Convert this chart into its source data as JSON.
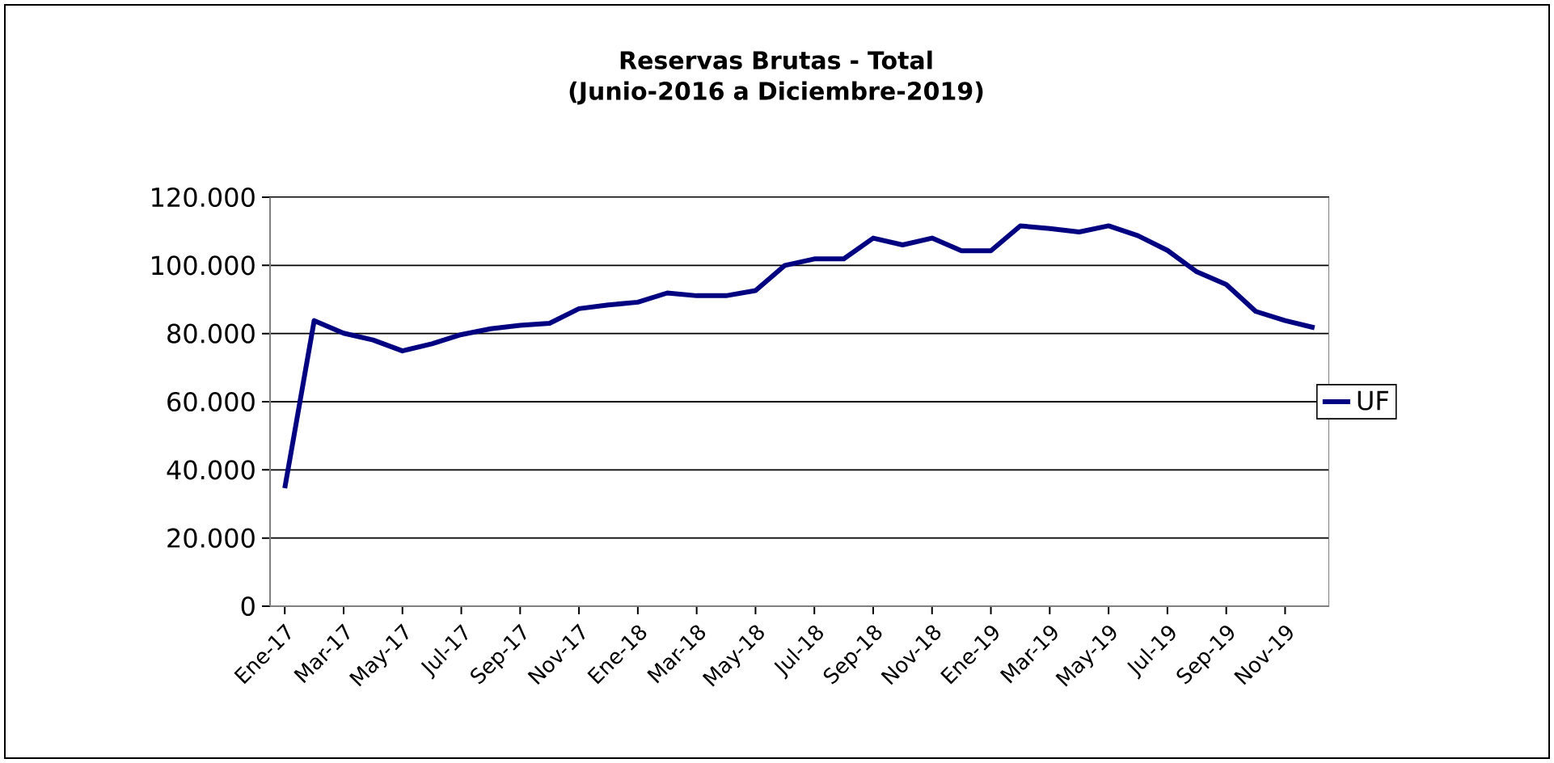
{
  "chart_data": {
    "type": "line",
    "title": "Reservas Brutas - Total\n(Junio-2016 a Diciembre-2019)",
    "categories": [
      "Ene-17",
      null,
      "Mar-17",
      null,
      "May-17",
      null,
      "Jul-17",
      null,
      "Sep-17",
      null,
      "Nov-17",
      null,
      "Ene-18",
      null,
      "Mar-18",
      null,
      "May-18",
      null,
      "Jul-18",
      null,
      "Sep-18",
      null,
      "Nov-18",
      null,
      "Ene-19",
      null,
      "Mar-19",
      null,
      "May-19",
      null,
      "Jul-19",
      null,
      "Sep-19",
      null,
      "Nov-19",
      null
    ],
    "series": [
      {
        "name": "UF",
        "color": "#000080",
        "values": [
          34600,
          83800,
          80100,
          78100,
          74900,
          77000,
          79700,
          81400,
          82400,
          83000,
          87300,
          88400,
          89200,
          91900,
          91100,
          91100,
          92600,
          100000,
          101900,
          101900,
          108000,
          106000,
          108000,
          104300,
          104300,
          111600,
          110800,
          109800,
          111600,
          108700,
          104400,
          98100,
          94400,
          86500,
          83800,
          81700
        ]
      }
    ],
    "ylim": [
      0,
      120000
    ],
    "yticks": [
      {
        "value": 0,
        "label": "0"
      },
      {
        "value": 20000,
        "label": "20.000"
      },
      {
        "value": 40000,
        "label": "40.000"
      },
      {
        "value": 60000,
        "label": "60.000"
      },
      {
        "value": 80000,
        "label": "80.000"
      },
      {
        "value": 100000,
        "label": "100.000"
      },
      {
        "value": 120000,
        "label": "120.000"
      }
    ],
    "grid": "y",
    "legend": "right",
    "marker": "none",
    "line_style": "solid"
  }
}
